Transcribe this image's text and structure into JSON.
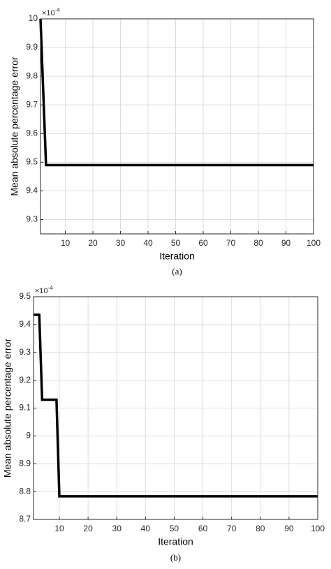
{
  "chart_data": [
    {
      "type": "line",
      "caption": "(a)",
      "x_label": "Iteration",
      "y_label": "Mean absolute percentage error",
      "y_multiplier_base": "×10",
      "y_multiplier_exp": "-4",
      "series": [
        {
          "color": "#000000",
          "x": [
            1,
            3,
            100
          ],
          "values": [
            10,
            9.49,
            9.49
          ]
        }
      ],
      "xlim": [
        1,
        100
      ],
      "xticks": [
        10,
        20,
        30,
        40,
        50,
        60,
        70,
        80,
        90,
        100
      ],
      "ylim": [
        9.25,
        10
      ],
      "yticks": [
        9.3,
        9.4,
        9.5,
        9.6,
        9.7,
        9.8,
        9.9,
        10
      ],
      "grid": true
    },
    {
      "type": "line",
      "caption": "(b)",
      "x_label": "Iteration",
      "y_label": "Mean absolute percentage error",
      "y_multiplier_base": "×10",
      "y_multiplier_exp": "-4",
      "series": [
        {
          "color": "#000000",
          "x": [
            1,
            3,
            4,
            9,
            10,
            100
          ],
          "values": [
            9.435,
            9.435,
            9.13,
            9.13,
            8.783,
            8.783
          ]
        }
      ],
      "xlim": [
        1,
        100
      ],
      "xticks": [
        10,
        20,
        30,
        40,
        50,
        60,
        70,
        80,
        90,
        100
      ],
      "ylim": [
        8.7,
        9.5
      ],
      "yticks": [
        8.7,
        8.8,
        8.9,
        9,
        9.1,
        9.2,
        9.3,
        9.4,
        9.5
      ],
      "grid": true
    }
  ]
}
